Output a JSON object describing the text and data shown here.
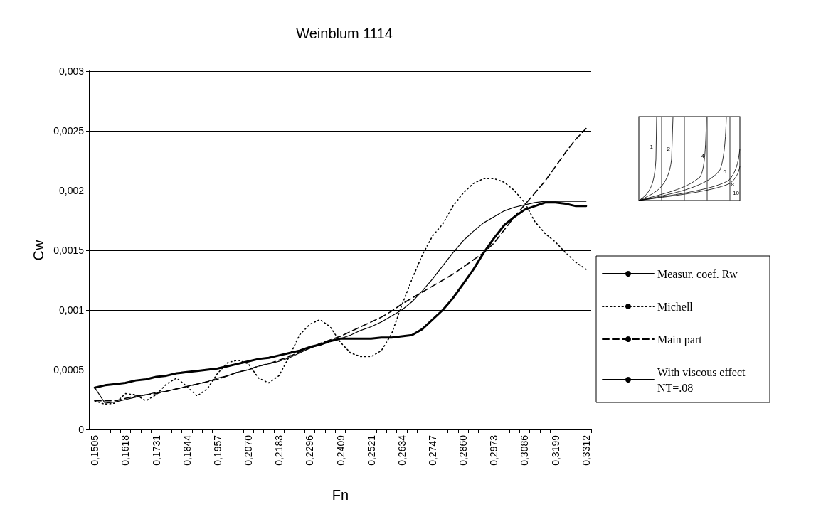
{
  "chart_data": {
    "type": "line",
    "title": "Weinblum 1114",
    "xlabel": "Fn",
    "ylabel": "Cw",
    "categories": [
      "0,1505",
      null,
      null,
      "0,1618",
      null,
      null,
      "0,1731",
      null,
      null,
      "0,1844",
      null,
      null,
      "0,1957",
      null,
      null,
      "0,2070",
      null,
      null,
      "0,2183",
      null,
      null,
      "0,2296",
      null,
      null,
      "0,2409",
      null,
      null,
      "0,2521",
      null,
      null,
      "0,2634",
      null,
      null,
      "0,2747",
      null,
      null,
      "0,2860",
      null,
      null,
      "0,2973",
      null,
      null,
      "0,3086",
      null,
      null,
      "0,3199",
      null,
      null,
      "0,3312"
    ],
    "ylim": [
      0,
      0.003
    ],
    "yticks": [
      {
        "value": 0,
        "label": "0"
      },
      {
        "value": 0.0005,
        "label": "0,0005"
      },
      {
        "value": 0.001,
        "label": "0,001"
      },
      {
        "value": 0.0015,
        "label": "0,0015"
      },
      {
        "value": 0.002,
        "label": "0,002"
      },
      {
        "value": 0.0025,
        "label": "0,0025"
      },
      {
        "value": 0.003,
        "label": "0,003"
      }
    ],
    "grid": "y",
    "legend": "right",
    "marker": "none",
    "annotations": [
      "1",
      "2",
      "4",
      "6",
      "8",
      "10"
    ],
    "series": [
      {
        "name": "Measur. coef. Rw",
        "color": "#000000",
        "line_style": "solid",
        "values": [
          0.00035,
          0.00037,
          0.00038,
          0.00039,
          0.00041,
          0.00042,
          0.00044,
          0.00045,
          0.00047,
          0.00048,
          0.00049,
          0.0005,
          0.00051,
          0.00053,
          0.00055,
          0.00057,
          0.00059,
          0.0006,
          0.00062,
          0.00064,
          0.00066,
          0.00069,
          0.00071,
          0.00074,
          0.00076,
          0.00076,
          0.00076,
          0.00076,
          0.00077,
          0.00077,
          0.00078,
          0.00079,
          0.00084,
          0.00092,
          0.001,
          0.0011,
          0.00122,
          0.00134,
          0.00148,
          0.0016,
          0.00171,
          0.00178,
          0.00184,
          0.00187,
          0.0019,
          0.0019,
          0.00189,
          0.00187,
          0.00187
        ]
      },
      {
        "name": "Michell",
        "color": "#000000",
        "line_style": "dotted",
        "values": [
          0.00024,
          0.00021,
          0.00022,
          0.0003,
          0.00029,
          0.00024,
          0.00029,
          0.00038,
          0.00043,
          0.00036,
          0.00028,
          0.00034,
          0.00047,
          0.00056,
          0.00058,
          0.00055,
          0.00043,
          0.00039,
          0.00045,
          0.00061,
          0.00079,
          0.00088,
          0.00092,
          0.00086,
          0.00073,
          0.00064,
          0.00061,
          0.00061,
          0.00066,
          0.0008,
          0.00104,
          0.00126,
          0.00146,
          0.00162,
          0.00172,
          0.00187,
          0.00198,
          0.00206,
          0.0021,
          0.0021,
          0.00207,
          0.002,
          0.0019,
          0.00174,
          0.00164,
          0.00157,
          0.00148,
          0.0014,
          0.00134
        ]
      },
      {
        "name": "Main part",
        "color": "#000000",
        "line_style": "dashed",
        "values": [
          0.00024,
          0.00024,
          0.00024,
          0.00026,
          0.00028,
          0.00029,
          0.0003,
          0.00032,
          0.00034,
          0.00036,
          0.00038,
          0.0004,
          0.00042,
          0.00045,
          0.00048,
          0.0005,
          0.00053,
          0.00055,
          0.00058,
          0.00061,
          0.00065,
          0.00068,
          0.00072,
          0.00075,
          0.00078,
          0.00082,
          0.00086,
          0.0009,
          0.00094,
          0.00099,
          0.00105,
          0.0011,
          0.00115,
          0.0012,
          0.00125,
          0.0013,
          0.00136,
          0.00142,
          0.00148,
          0.00156,
          0.00167,
          0.00178,
          0.00188,
          0.00198,
          0.00208,
          0.0022,
          0.00232,
          0.00243,
          0.00252
        ]
      },
      {
        "name": "With viscous effect NT=.08",
        "color": "#000000",
        "line_style": "solid",
        "values": [
          0.00035,
          0.00022,
          0.00023,
          0.00025,
          0.00027,
          0.00029,
          0.00031,
          0.00032,
          0.00034,
          0.00036,
          0.00038,
          0.0004,
          0.00043,
          0.00045,
          0.00048,
          0.0005,
          0.00053,
          0.00055,
          0.00057,
          0.0006,
          0.00064,
          0.00068,
          0.00071,
          0.00074,
          0.00076,
          0.00079,
          0.00083,
          0.00086,
          0.0009,
          0.00095,
          0.001,
          0.00107,
          0.00116,
          0.00126,
          0.00137,
          0.00148,
          0.00158,
          0.00166,
          0.00173,
          0.00178,
          0.00183,
          0.00186,
          0.00188,
          0.0019,
          0.00191,
          0.00191,
          0.00191,
          0.00191,
          0.00191
        ]
      }
    ]
  }
}
